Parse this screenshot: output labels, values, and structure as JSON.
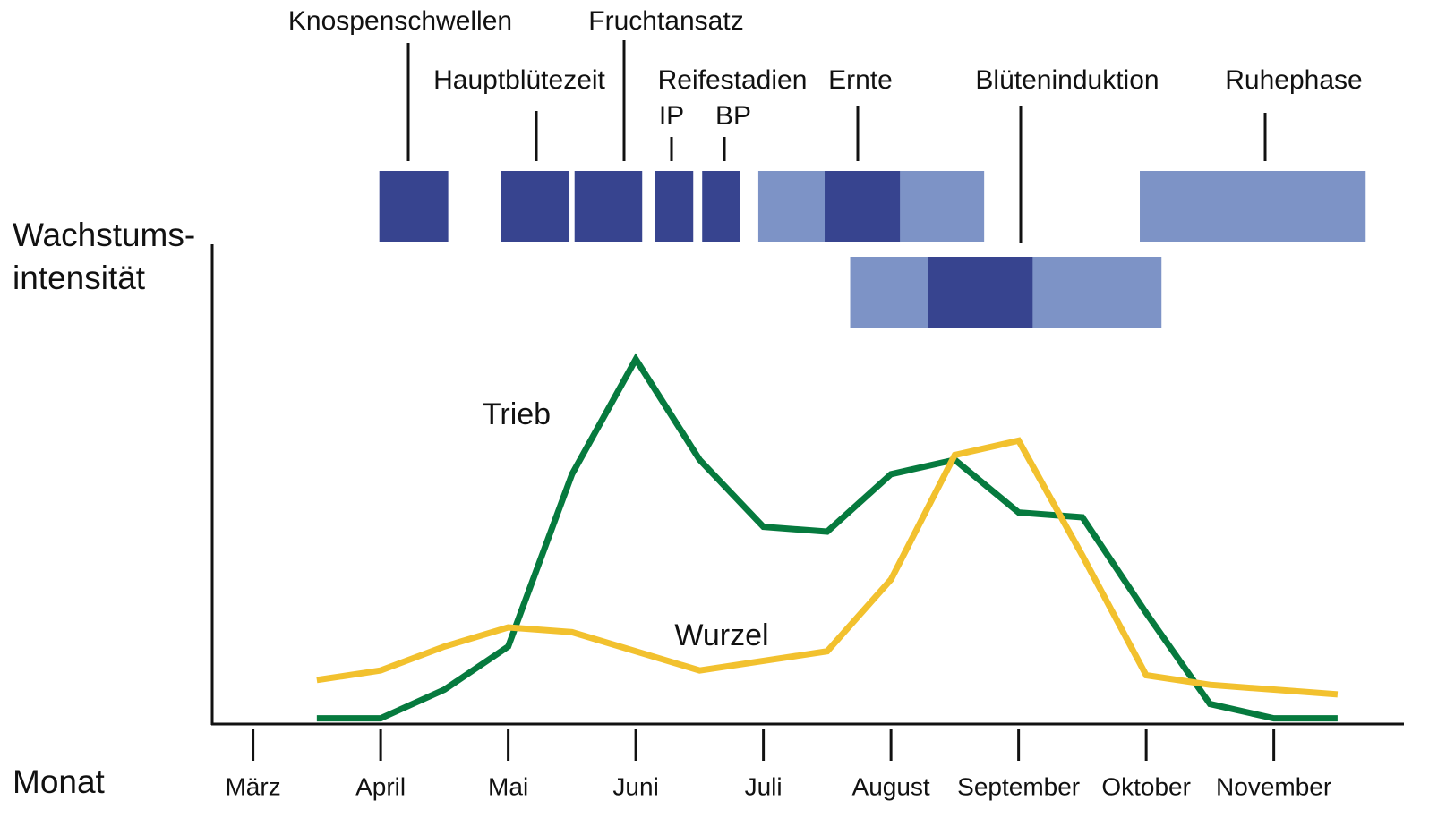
{
  "chart_data": {
    "type": "line",
    "ylabel": [
      "Wachstums-",
      "intensität"
    ],
    "xlabel": "Monat",
    "xlim": [
      -0.32,
      9.02
    ],
    "ylim": [
      0,
      100
    ],
    "xticks": [
      {
        "value": 0,
        "label": "März"
      },
      {
        "value": 1,
        "label": "April"
      },
      {
        "value": 2,
        "label": "Mai"
      },
      {
        "value": 3,
        "label": "Juni"
      },
      {
        "value": 4,
        "label": "Juli"
      },
      {
        "value": 5,
        "label": "August"
      },
      {
        "value": 6,
        "label": "September"
      },
      {
        "value": 7,
        "label": "Oktober"
      },
      {
        "value": 8,
        "label": "November"
      }
    ],
    "series": [
      {
        "name": "Trieb",
        "color": "#067a3e",
        "x": [
          0.5,
          1,
          1.5,
          2,
          2.5,
          3,
          3.5,
          4,
          4.5,
          5,
          5.5,
          6,
          6.5,
          7,
          7.5,
          8,
          8.5
        ],
        "values": [
          1,
          1,
          7,
          16,
          52,
          76,
          55,
          41,
          40,
          52,
          55,
          44,
          43,
          23,
          4,
          1,
          1
        ]
      },
      {
        "name": "Wurzel",
        "color": "#f2c12e",
        "x": [
          0.5,
          1,
          1.5,
          2,
          2.5,
          3.5,
          4,
          4.5,
          5,
          5.5,
          6,
          6.5,
          7,
          7.5,
          8,
          8.5
        ],
        "values": [
          9,
          11,
          16,
          20,
          19,
          11,
          13,
          15,
          30,
          56,
          59,
          35,
          10,
          8,
          7,
          6
        ]
      }
    ],
    "phases": [
      {
        "name": "Knospenschwellen",
        "start": 0.99,
        "end": 1.53,
        "color": "#37448f"
      },
      {
        "name": "Hauptblütezeit",
        "start": 1.94,
        "end": 2.48,
        "color": "#37448f"
      },
      {
        "name": "Fruchtansatz",
        "start": 2.52,
        "end": 3.05,
        "color": "#37448f"
      },
      {
        "name": "IP",
        "start": 3.15,
        "end": 3.45,
        "color": "#37448f"
      },
      {
        "name": "BP",
        "start": 3.52,
        "end": 3.82,
        "color": "#37448f"
      },
      {
        "name": "Ernte",
        "start": 3.96,
        "end": 5.73,
        "color": "#7d93c6",
        "peak": [
          4.48,
          5.07
        ],
        "peak_color": "#37448f"
      },
      {
        "name": "Blüteninduktion",
        "start": 4.68,
        "end": 7.12,
        "color": "#7d93c6",
        "peak": [
          5.29,
          6.11
        ],
        "peak_color": "#37448f"
      },
      {
        "name": "Ruhephase",
        "start": 6.95,
        "end": 8.72,
        "color": "#7d93c6"
      }
    ],
    "annotation": "Reifestadien"
  }
}
